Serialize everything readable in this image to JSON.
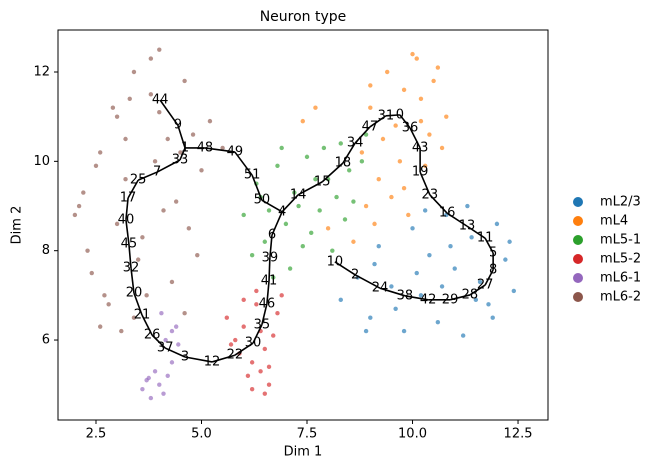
{
  "chart_data": {
    "type": "scatter",
    "title": "Neuron type",
    "x_label": "Dim 1",
    "y_label": "Dim 2",
    "xlim": [
      1.6,
      13.21
    ],
    "ylim": [
      4.21,
      12.94
    ],
    "xticks": [
      2.5,
      {
        "value": 5.0,
        "label": "5.0"
      },
      7.5,
      {
        "value": 10.0,
        "label": "10.0"
      },
      12.5
    ],
    "yticks": [
      6,
      8,
      10,
      12
    ],
    "grid": false,
    "legend": "right",
    "series": [
      {
        "name": "mL2/3",
        "color": "#1f77b4",
        "x": [
          8.3,
          8.7,
          9.0,
          9.2,
          9.5,
          9.8,
          10.0,
          10.2,
          10.4,
          10.6,
          10.8,
          11.0,
          11.2,
          11.4,
          11.6,
          11.8,
          12.0,
          12.2,
          12.4,
          9.1,
          9.6,
          10.1,
          10.7,
          11.3,
          11.9,
          8.9,
          10.3,
          11.5,
          10.9,
          12.3
        ],
        "y": [
          6.9,
          7.4,
          6.5,
          8.1,
          7.2,
          6.2,
          8.5,
          7.0,
          7.9,
          6.4,
          8.8,
          7.6,
          6.1,
          8.3,
          7.3,
          6.8,
          8.6,
          7.8,
          7.1,
          7.7,
          6.7,
          7.5,
          7.2,
          9.0,
          6.5,
          6.2,
          8.9,
          6.9,
          8.1,
          8.2
        ]
      },
      {
        "name": "mL4",
        "color": "#ff7f0e",
        "x": [
          8.8,
          9.0,
          9.2,
          9.4,
          9.6,
          9.8,
          10.0,
          10.2,
          10.4,
          10.6,
          10.8,
          9.5,
          9.9,
          10.3,
          10.1,
          9.7,
          9.3,
          8.9,
          10.5,
          10.7,
          9.1,
          7.4,
          7.7,
          8.0,
          8.6,
          9.0,
          9.8,
          10.2
        ],
        "y": [
          10.2,
          11.2,
          9.6,
          12.0,
          10.8,
          11.6,
          12.4,
          11.4,
          10.6,
          12.1,
          11.0,
          9.2,
          8.8,
          9.9,
          12.3,
          10.0,
          10.5,
          9.0,
          11.8,
          10.3,
          8.6,
          10.9,
          11.2,
          8.5,
          8.2,
          11.7,
          9.4,
          10.9
        ]
      },
      {
        "name": "mL5-1",
        "color": "#2ca02c",
        "x": [
          6.0,
          6.3,
          6.5,
          6.8,
          7.0,
          7.2,
          7.5,
          7.8,
          8.0,
          8.3,
          8.6,
          8.9,
          6.2,
          6.6,
          7.1,
          7.6,
          8.1,
          8.5,
          6.9,
          7.3,
          7.9,
          8.4,
          6.4,
          7.7,
          8.8,
          7.4,
          6.7,
          8.2
        ],
        "y": [
          8.8,
          9.5,
          8.2,
          9.9,
          8.6,
          9.3,
          10.1,
          8.9,
          9.6,
          10.4,
          9.1,
          10.6,
          7.9,
          8.9,
          7.6,
          8.4,
          8.0,
          9.8,
          10.3,
          9.0,
          10.3,
          8.7,
          9.2,
          9.6,
          10.0,
          8.1,
          7.4,
          9.2
        ]
      },
      {
        "name": "mL5-2",
        "color": "#d62728",
        "x": [
          5.6,
          5.8,
          6.0,
          6.2,
          6.4,
          6.6,
          6.8,
          5.9,
          6.1,
          6.3,
          6.5,
          6.7,
          6.9,
          6.2,
          6.4,
          6.0,
          5.7,
          6.6,
          6.3,
          6.5
        ],
        "y": [
          6.5,
          6.0,
          6.9,
          5.5,
          6.2,
          5.0,
          6.6,
          5.7,
          5.2,
          6.8,
          5.8,
          6.1,
          7.0,
          4.9,
          5.3,
          6.3,
          5.9,
          5.4,
          7.1,
          4.8
        ]
      },
      {
        "name": "mL6-1",
        "color": "#9467bd",
        "x": [
          3.6,
          3.7,
          3.8,
          3.9,
          4.0,
          4.1,
          4.2,
          4.3,
          4.4,
          3.75,
          4.05,
          4.15,
          4.3,
          4.45
        ],
        "y": [
          4.9,
          5.1,
          4.7,
          5.3,
          5.0,
          4.8,
          5.2,
          5.5,
          6.3,
          5.15,
          6.6,
          6.0,
          6.2,
          5.9
        ]
      },
      {
        "name": "mL6-2",
        "color": "#8c564b",
        "x": [
          2.0,
          2.2,
          2.4,
          2.6,
          2.8,
          3.0,
          3.2,
          3.4,
          3.6,
          3.8,
          4.0,
          4.2,
          4.4,
          4.6,
          4.8,
          5.0,
          5.2,
          5.5,
          2.3,
          2.7,
          3.1,
          3.5,
          3.9,
          4.3,
          4.7,
          2.5,
          2.9,
          3.3,
          3.7,
          4.1,
          4.5,
          2.1,
          3.0,
          3.8,
          4.6,
          3.4,
          2.6,
          4.0,
          3.2,
          4.9
        ],
        "y": [
          8.8,
          9.3,
          7.5,
          10.2,
          6.8,
          11.0,
          9.6,
          12.0,
          8.3,
          11.5,
          12.5,
          10.5,
          9.1,
          11.8,
          10.6,
          9.8,
          10.9,
          10.3,
          8.0,
          7.0,
          6.2,
          7.8,
          10.0,
          7.3,
          8.5,
          9.9,
          11.2,
          11.4,
          7.0,
          8.9,
          10.2,
          9.0,
          8.6,
          12.3,
          6.6,
          6.5,
          6.3,
          11.1,
          10.5,
          7.9
        ]
      }
    ],
    "trajectory": {
      "color": "#000000",
      "node_labels": [
        0,
        1,
        2,
        3,
        4,
        5,
        6,
        7,
        8,
        9,
        10,
        11,
        12,
        13,
        14,
        15,
        16,
        17,
        18,
        19,
        20,
        21,
        22,
        23,
        24,
        25,
        26,
        27,
        28,
        29,
        30,
        31,
        32,
        33,
        34,
        35,
        36,
        37,
        38,
        39,
        40,
        41,
        42,
        43,
        44,
        45,
        46,
        47,
        48,
        49,
        50,
        51
      ],
      "node_x": [
        9.7,
        4.61,
        8.64,
        4.61,
        6.91,
        11.91,
        6.67,
        3.95,
        11.91,
        4.44,
        8.16,
        11.72,
        5.25,
        11.29,
        7.29,
        7.86,
        10.82,
        3.26,
        8.35,
        10.18,
        3.4,
        3.59,
        5.79,
        10.41,
        9.23,
        3.5,
        3.83,
        11.72,
        11.36,
        10.89,
        6.22,
        9.37,
        3.33,
        4.49,
        8.64,
        6.43,
        9.94,
        4.14,
        9.82,
        6.62,
        3.21,
        6.6,
        10.37,
        10.18,
        4.02,
        3.28,
        6.55,
        8.99,
        5.08,
        5.79,
        6.43,
        6.2
      ],
      "node_y": [
        11.04,
        10.3,
        7.46,
        5.62,
        8.87,
        7.95,
        8.35,
        9.76,
        7.57,
        10.81,
        7.75,
        8.28,
        5.51,
        8.55,
        9.25,
        9.54,
        8.84,
        9.18,
        9.96,
        9.76,
        7.05,
        6.56,
        5.66,
        9.25,
        7.16,
        9.58,
        6.11,
        7.23,
        7.01,
        6.9,
        5.93,
        11.02,
        7.61,
        10.03,
        10.41,
        6.34,
        10.75,
        5.82,
        6.99,
        7.84,
        8.69,
        7.32,
        6.9,
        10.3,
        11.37,
        8.15,
        6.81,
        10.77,
        10.3,
        10.21,
        9.13,
        9.69
      ],
      "edges": [
        [
          44,
          9
        ],
        [
          9,
          1
        ],
        [
          1,
          33
        ],
        [
          33,
          7
        ],
        [
          7,
          25
        ],
        [
          25,
          17
        ],
        [
          17,
          40
        ],
        [
          40,
          45
        ],
        [
          45,
          32
        ],
        [
          32,
          20
        ],
        [
          20,
          21
        ],
        [
          21,
          26
        ],
        [
          26,
          37
        ],
        [
          37,
          3
        ],
        [
          3,
          12
        ],
        [
          12,
          22
        ],
        [
          22,
          30
        ],
        [
          30,
          35
        ],
        [
          35,
          46
        ],
        [
          46,
          41
        ],
        [
          41,
          39
        ],
        [
          39,
          6
        ],
        [
          6,
          4
        ],
        [
          4,
          50
        ],
        [
          50,
          51
        ],
        [
          51,
          49
        ],
        [
          49,
          48
        ],
        [
          48,
          1
        ],
        [
          4,
          14
        ],
        [
          14,
          15
        ],
        [
          15,
          18
        ],
        [
          18,
          34
        ],
        [
          34,
          47
        ],
        [
          47,
          31
        ],
        [
          31,
          0
        ],
        [
          0,
          36
        ],
        [
          36,
          43
        ],
        [
          43,
          19
        ],
        [
          19,
          23
        ],
        [
          23,
          16
        ],
        [
          16,
          13
        ],
        [
          13,
          11
        ],
        [
          11,
          5
        ],
        [
          5,
          8
        ],
        [
          8,
          27
        ],
        [
          27,
          28
        ],
        [
          28,
          29
        ],
        [
          29,
          42
        ],
        [
          42,
          38
        ],
        [
          38,
          24
        ],
        [
          24,
          2
        ],
        [
          2,
          10
        ]
      ]
    }
  }
}
